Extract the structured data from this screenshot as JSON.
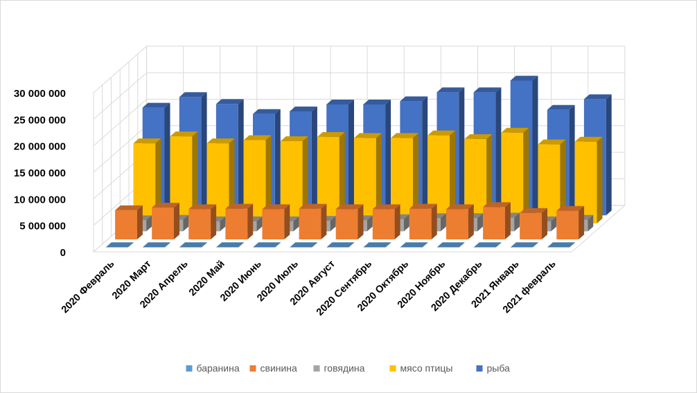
{
  "chart_data": {
    "type": "bar",
    "variant": "3d-column",
    "title": "",
    "xlabel": "",
    "ylabel": "",
    "ylim": [
      0,
      30000000
    ],
    "y_ticks": [
      {
        "value": 0,
        "label": "0"
      },
      {
        "value": 5000000,
        "label": "5 000 000"
      },
      {
        "value": 10000000,
        "label": "10 000 000"
      },
      {
        "value": 15000000,
        "label": "15 000 000"
      },
      {
        "value": 20000000,
        "label": "20 000 000"
      },
      {
        "value": 25000000,
        "label": "25 000 000"
      },
      {
        "value": 30000000,
        "label": "30 000 000"
      }
    ],
    "grid": true,
    "legend_position": "bottom",
    "categories": [
      "2020 Февраль",
      "2020 Март",
      "2020 Апрель",
      "2020 Май",
      "2020 Июнь",
      "2020 Июль",
      "2020 Август",
      "2020 Сентябрь",
      "2020 Октябрь",
      "2020 Ноябрь",
      "2020 Декабрь",
      "2021 Январь",
      "2021 февраль"
    ],
    "series": [
      {
        "name": "баранина",
        "color": "#5B9BD5",
        "values": [
          60000,
          60000,
          60000,
          60000,
          60000,
          60000,
          60000,
          60000,
          60000,
          60000,
          60000,
          60000,
          60000
        ]
      },
      {
        "name": "свинина",
        "color": "#ED7D31",
        "values": [
          5500000,
          6000000,
          5700000,
          5800000,
          5700000,
          5800000,
          5700000,
          5700000,
          5800000,
          5700000,
          6100000,
          5000000,
          5400000
        ]
      },
      {
        "name": "говядина",
        "color": "#A5A5A5",
        "values": [
          2100000,
          2200000,
          1900000,
          1900000,
          1900000,
          2000000,
          2100000,
          2300000,
          2500000,
          2500000,
          2600000,
          1900000,
          2200000
        ]
      },
      {
        "name": "мясо птицы",
        "color": "#FFC000",
        "values": [
          15100000,
          16400000,
          15100000,
          15700000,
          15500000,
          16300000,
          16100000,
          16100000,
          16600000,
          15900000,
          17100000,
          14900000,
          15400000
        ]
      },
      {
        "name": "рыба",
        "color": "#4472C4",
        "values": [
          20300000,
          22300000,
          21000000,
          19100000,
          19600000,
          20900000,
          20900000,
          21500000,
          23200000,
          23200000,
          25400000,
          19900000,
          21900000
        ]
      }
    ]
  }
}
